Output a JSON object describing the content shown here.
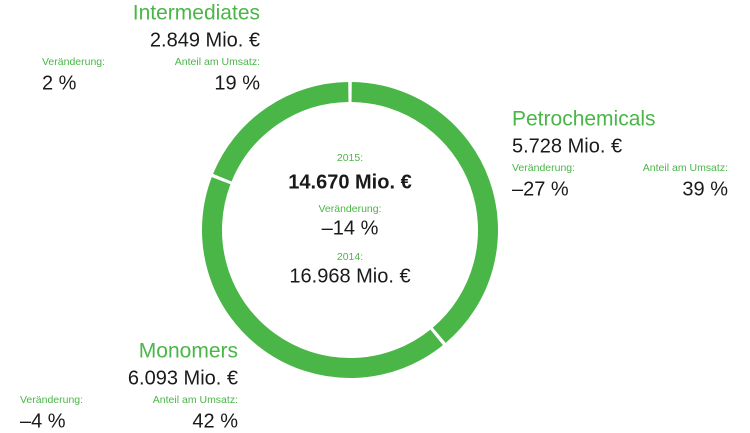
{
  "chart_data": {
    "type": "donut",
    "categories": [
      "Petrochemicals",
      "Monomers",
      "Intermediates"
    ],
    "values": [
      39,
      42,
      19
    ],
    "value_labels": [
      "39 %",
      "42 %",
      "19 %"
    ],
    "revenue_labels": [
      "5.728 Mio. €",
      "6.093 Mio. €",
      "2.849 Mio. €"
    ],
    "change_labels": [
      "–27 %",
      "–4 %",
      "2 %"
    ],
    "change_caption": "Veränderung:",
    "share_caption": "Anteil am Umsatz:",
    "color": "#4ab648",
    "center": {
      "year_label": "2015:",
      "total": "14.670 Mio. €",
      "change": "–14 %",
      "prev_year_label": "2014:",
      "prev_total": "16.968 Mio. €"
    }
  }
}
